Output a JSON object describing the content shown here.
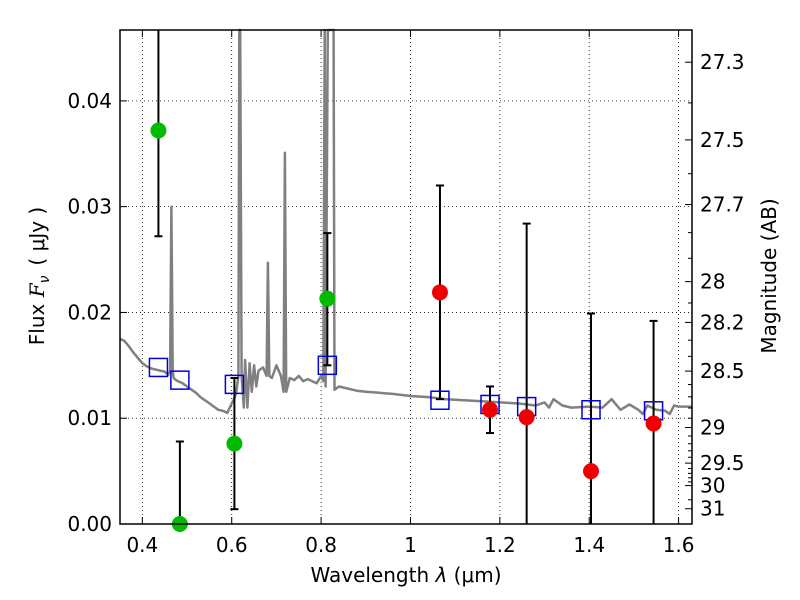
{
  "chart_data": {
    "type": "scatter",
    "xlabel": "Wavelength  λ (μm)",
    "ylabel": "Flux  F_ν  ( μJy )",
    "ylabel_parts": {
      "prefix": "Flux ",
      "symbol": "F",
      "subscript": "ν",
      "unit": "( μJy )"
    },
    "xlabel_parts": {
      "prefix": "Wavelength  ",
      "symbol": "λ",
      "unit": " (μm)"
    },
    "y2label": "Magnitude (AB)",
    "xlim": [
      0.35,
      1.63
    ],
    "ylim": [
      0.0,
      0.0467
    ],
    "grid": true,
    "xticks": [
      0.4,
      0.6,
      0.8,
      1.0,
      1.2,
      1.4,
      1.6
    ],
    "xtick_labels": [
      "0.4",
      "0.6",
      "0.8",
      "1",
      "1.2",
      "1.4",
      "1.6"
    ],
    "yticks": [
      0.0,
      0.01,
      0.02,
      0.03,
      0.04
    ],
    "ytick_labels": [
      "0.00",
      "0.01",
      "0.02",
      "0.03",
      "0.04"
    ],
    "y2ticks": [
      {
        "mag": 27.3,
        "label": "27.3"
      },
      {
        "mag": 27.5,
        "label": "27.5"
      },
      {
        "mag": 27.7,
        "label": "27.7"
      },
      {
        "mag": 28.0,
        "label": "28"
      },
      {
        "mag": 28.2,
        "label": "28.2"
      },
      {
        "mag": 28.5,
        "label": "28.5"
      },
      {
        "mag": 29.0,
        "label": "29"
      },
      {
        "mag": 29.5,
        "label": "29.5"
      },
      {
        "mag": 30.0,
        "label": "30"
      },
      {
        "mag": 31.0,
        "label": "31"
      }
    ],
    "y2minorticks": [
      27.4,
      27.6,
      27.8,
      27.9,
      28.1,
      28.3,
      28.4,
      28.6,
      28.7,
      28.8,
      28.9,
      29.1,
      29.2,
      29.3,
      29.4,
      29.6,
      29.7,
      29.8,
      29.9,
      30.5
    ],
    "series": [
      {
        "name": "green detections",
        "color": "#00bb00",
        "marker": "circle",
        "points": [
          {
            "x": 0.436,
            "y": 0.0372,
            "err_low": 0.01,
            "err_high": 0.015
          },
          {
            "x": 0.484,
            "y": 0.0,
            "err_low": 0.0,
            "err_high": 0.0078
          },
          {
            "x": 0.606,
            "y": 0.0076,
            "err_low": 0.0062,
            "err_high": 0.0062
          },
          {
            "x": 0.814,
            "y": 0.0213,
            "err_low": 0.0063,
            "err_high": 0.0062
          }
        ]
      },
      {
        "name": "red detections",
        "color": "#ee0000",
        "marker": "circle",
        "points": [
          {
            "x": 1.066,
            "y": 0.0219,
            "err_low": 0.0101,
            "err_high": 0.0101
          },
          {
            "x": 1.178,
            "y": 0.0108,
            "err_low": 0.0022,
            "err_high": 0.0022
          },
          {
            "x": 1.26,
            "y": 0.0101,
            "err_low": 0.0182,
            "err_high": 0.0183
          },
          {
            "x": 1.404,
            "y": 0.005,
            "err_low": 0.0149,
            "err_high": 0.0149
          },
          {
            "x": 1.544,
            "y": 0.0095,
            "err_low": 0.0096,
            "err_high": 0.0097
          }
        ]
      },
      {
        "name": "model photometry",
        "color": "#0000dd",
        "marker": "open-square",
        "points": [
          {
            "x": 0.436,
            "y": 0.0148
          },
          {
            "x": 0.484,
            "y": 0.0136
          },
          {
            "x": 0.606,
            "y": 0.0132
          },
          {
            "x": 0.814,
            "y": 0.015
          },
          {
            "x": 1.066,
            "y": 0.0117
          },
          {
            "x": 1.178,
            "y": 0.0113
          },
          {
            "x": 1.26,
            "y": 0.0111
          },
          {
            "x": 1.404,
            "y": 0.0108
          },
          {
            "x": 1.544,
            "y": 0.0107
          }
        ]
      },
      {
        "name": "model spectrum",
        "color": "#808080",
        "type": "line",
        "x": [
          0.35,
          0.36,
          0.37,
          0.38,
          0.39,
          0.4,
          0.41,
          0.42,
          0.43,
          0.44,
          0.45,
          0.458,
          0.462,
          0.465,
          0.468,
          0.47,
          0.475,
          0.48,
          0.49,
          0.5,
          0.51,
          0.52,
          0.53,
          0.54,
          0.55,
          0.56,
          0.57,
          0.58,
          0.59,
          0.6,
          0.605,
          0.61,
          0.615,
          0.617,
          0.619,
          0.622,
          0.627,
          0.63,
          0.635,
          0.64,
          0.645,
          0.65,
          0.655,
          0.66,
          0.67,
          0.678,
          0.681,
          0.684,
          0.69,
          0.7,
          0.71,
          0.716,
          0.719,
          0.722,
          0.73,
          0.74,
          0.75,
          0.76,
          0.77,
          0.78,
          0.79,
          0.8,
          0.805,
          0.808,
          0.81,
          0.815,
          0.82,
          0.822,
          0.825,
          0.828,
          0.83,
          0.84,
          0.86,
          0.88,
          0.9,
          0.93,
          0.96,
          1.0,
          1.04,
          1.08,
          1.12,
          1.16,
          1.2,
          1.24,
          1.28,
          1.3,
          1.31,
          1.32,
          1.34,
          1.36,
          1.4,
          1.43,
          1.45,
          1.47,
          1.49,
          1.51,
          1.52,
          1.53,
          1.55,
          1.57,
          1.58,
          1.59,
          1.6,
          1.63
        ],
        "y": [
          0.0175,
          0.0173,
          0.0168,
          0.0162,
          0.0157,
          0.0152,
          0.0149,
          0.0147,
          0.0146,
          0.0145,
          0.0144,
          0.0141,
          0.0145,
          0.03,
          0.0145,
          0.0138,
          0.0136,
          0.0135,
          0.0133,
          0.013,
          0.0127,
          0.0124,
          0.012,
          0.0117,
          0.0114,
          0.0111,
          0.0108,
          0.0107,
          0.0105,
          0.0114,
          0.0118,
          0.0124,
          0.014,
          0.0467,
          0.0467,
          0.014,
          0.011,
          0.0155,
          0.011,
          0.0152,
          0.0125,
          0.015,
          0.013,
          0.0145,
          0.0148,
          0.014,
          0.0247,
          0.014,
          0.0138,
          0.015,
          0.014,
          0.0125,
          0.0351,
          0.0125,
          0.0138,
          0.0136,
          0.014,
          0.0135,
          0.0137,
          0.0135,
          0.0133,
          0.014,
          0.0135,
          0.0467,
          0.013,
          0.0467,
          0.0467,
          0.0467,
          0.0467,
          0.0467,
          0.0127,
          0.013,
          0.0128,
          0.0126,
          0.0125,
          0.0124,
          0.0123,
          0.0121,
          0.012,
          0.0118,
          0.0117,
          0.0116,
          0.0115,
          0.0114,
          0.0112,
          0.0115,
          0.011,
          0.0118,
          0.0112,
          0.011,
          0.0111,
          0.011,
          0.0118,
          0.0108,
          0.0113,
          0.0108,
          0.0104,
          0.0112,
          0.0108,
          0.0107,
          0.0104,
          0.0112,
          0.0111,
          0.0111
        ]
      }
    ]
  }
}
